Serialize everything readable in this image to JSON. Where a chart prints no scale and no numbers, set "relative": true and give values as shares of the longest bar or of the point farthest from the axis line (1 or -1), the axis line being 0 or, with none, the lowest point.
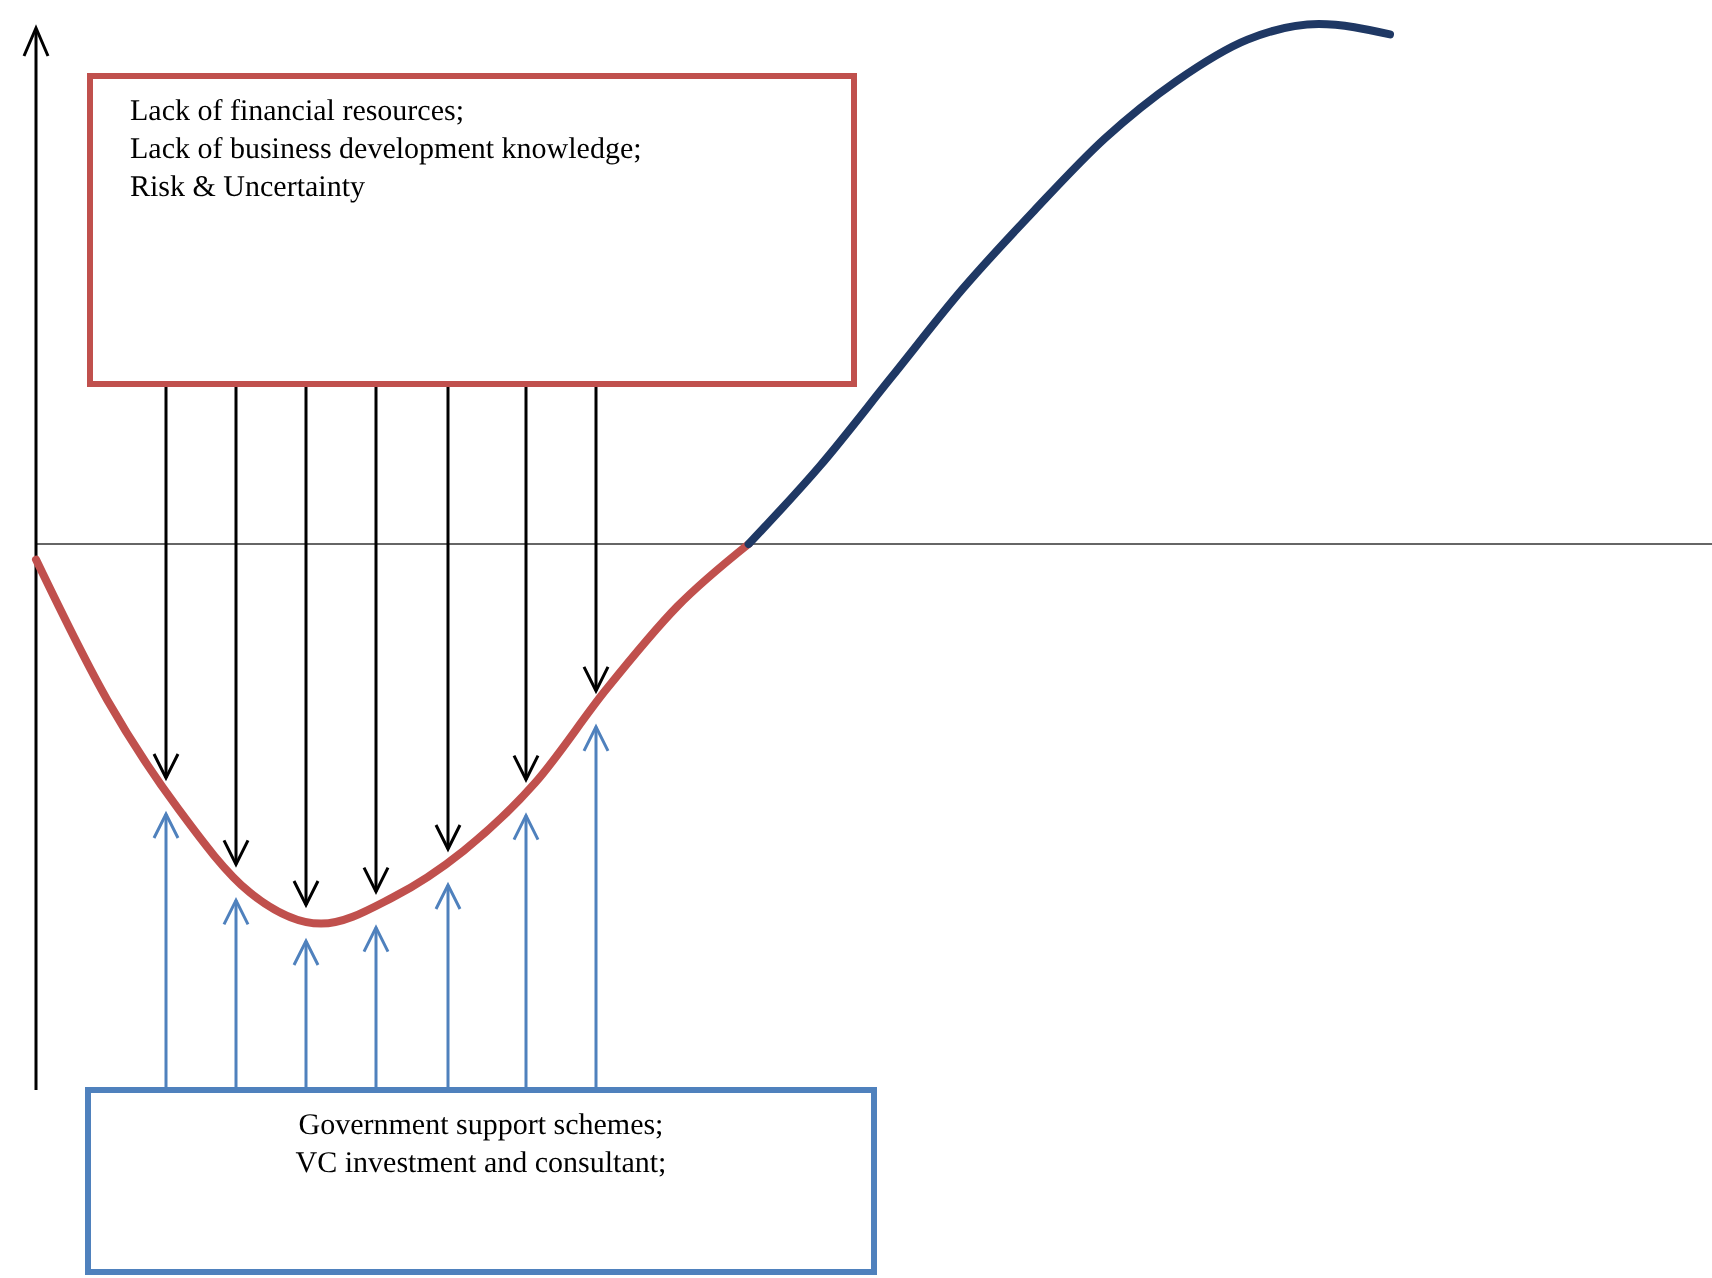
{
  "chart_data": {
    "type": "line",
    "relative": true,
    "categories": [
      null,
      null,
      null,
      null,
      null,
      null,
      null,
      null,
      null,
      null,
      null,
      null,
      null,
      null,
      null,
      null,
      null,
      null,
      null,
      null
    ],
    "series": [
      {
        "color": "#c0504d",
        "values": [
          -0.03,
          -0.3,
          -0.51,
          -0.67,
          -0.73,
          -0.68,
          -0.59,
          -0.46,
          -0.28,
          -0.12,
          0,
          null,
          null,
          null,
          null,
          null,
          null,
          null,
          null,
          null
        ]
      },
      {
        "color": "#1f3864",
        "values": [
          null,
          null,
          null,
          null,
          null,
          null,
          null,
          null,
          null,
          null,
          0,
          0.15,
          0.32,
          0.49,
          0.64,
          0.78,
          0.89,
          0.97,
          1,
          0.98
        ]
      }
    ],
    "annotations": [
      "Lack of financial resources;\nLack of business development knowledge;\nRisk & Uncertainty",
      "Government support schemes;\nVC investment and consultant;"
    ]
  }
}
